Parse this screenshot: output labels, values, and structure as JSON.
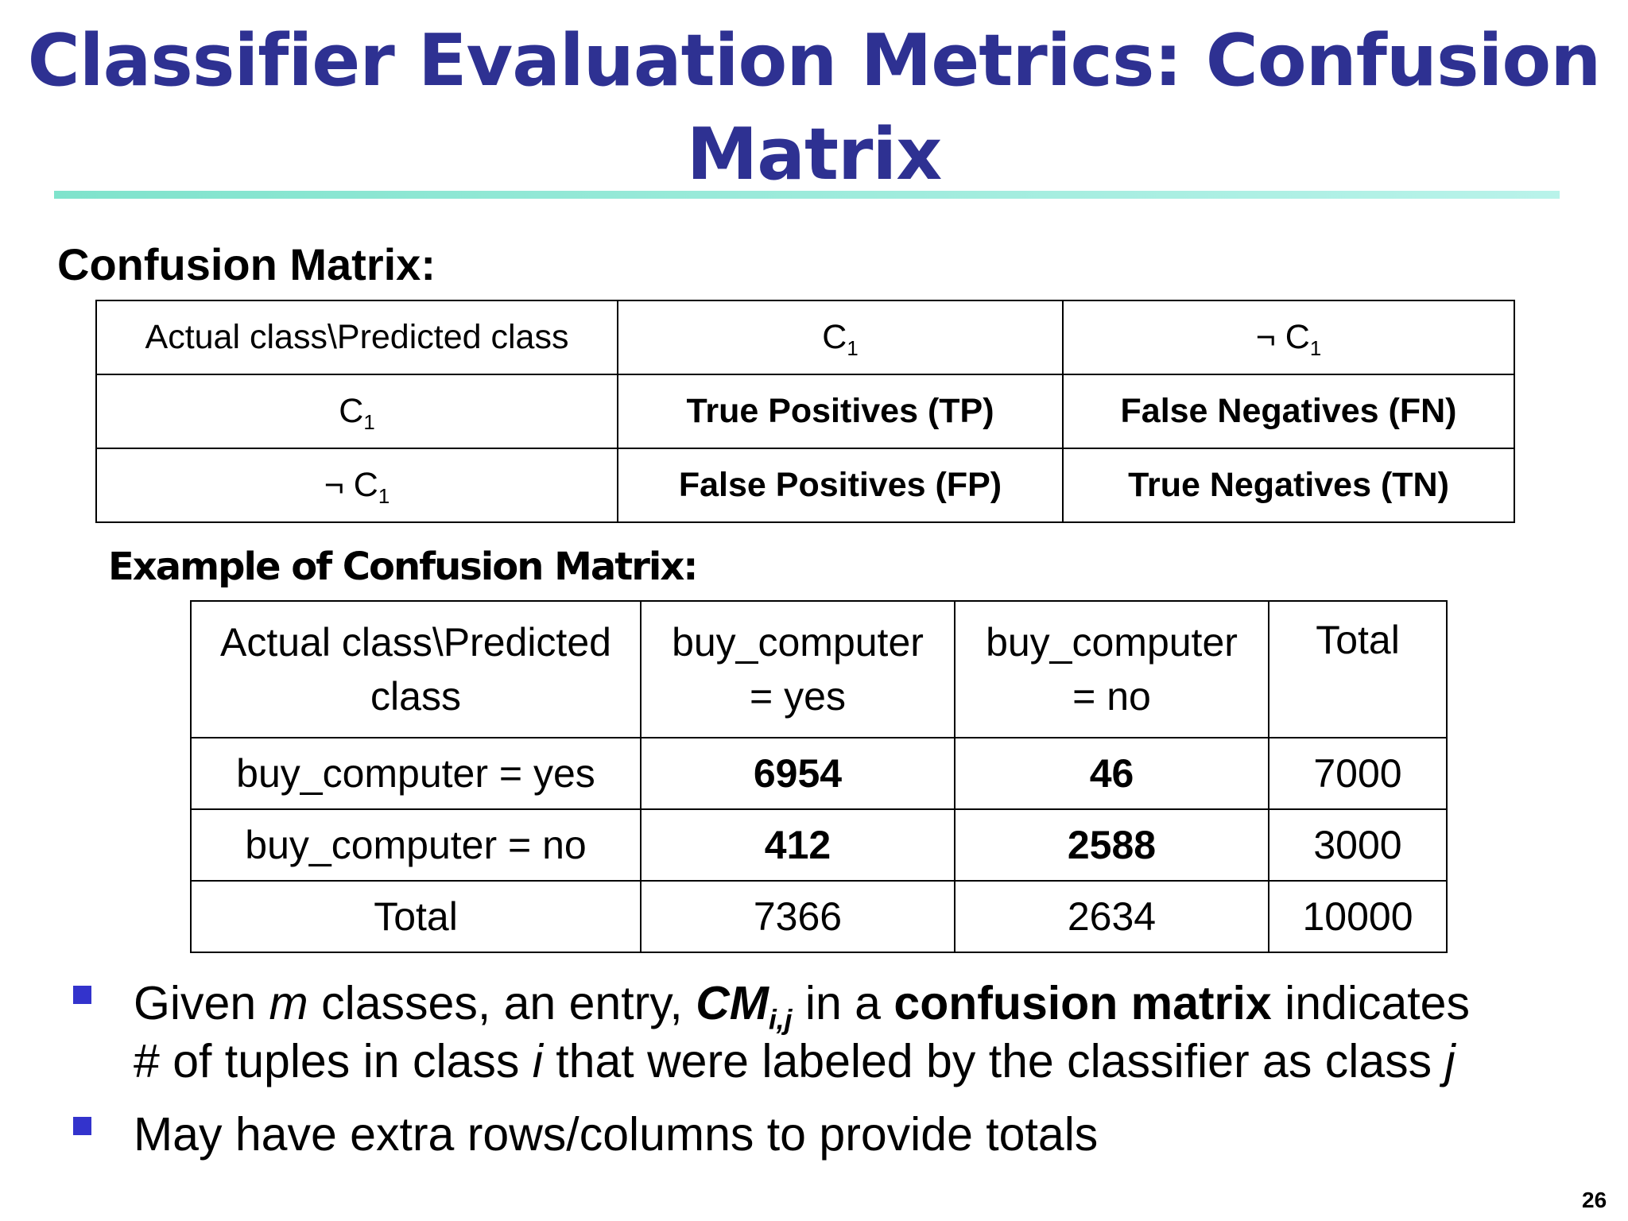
{
  "slide": {
    "title_line1": "Classifier Evaluation Metrics: Confusion",
    "title_line2": "Matrix",
    "section_heading": "Confusion Matrix:",
    "example_heading": "Example of Confusion Matrix:",
    "page_number": "26"
  },
  "matrix": {
    "corner": "Actual class\\Predicted class",
    "col_c1_prefix": "C",
    "col_c1_sub": "1",
    "col_notc1_prefix": "¬ C",
    "col_notc1_sub": "1",
    "row1_prefix": "C",
    "row1_sub": "1",
    "row2_prefix": "¬ C",
    "row2_sub": "1",
    "tp": "True Positives (TP)",
    "fn": "False Negatives (FN)",
    "fp": "False Positives (FP)",
    "tn": "True Negatives (TN)"
  },
  "example": {
    "corner_line1": "Actual class\\Predicted",
    "corner_line2": "class",
    "col_yes_line1": "buy_computer",
    "col_yes_line2": "=  yes",
    "col_no_line1": "buy_computer",
    "col_no_line2": "= no",
    "col_total": "Total",
    "rows": [
      {
        "label": "buy_computer = yes",
        "yes": "6954",
        "no": "46",
        "total": "7000"
      },
      {
        "label": "buy_computer = no",
        "yes": "412",
        "no": "2588",
        "total": "3000"
      },
      {
        "label": "Total",
        "yes": "7366",
        "no": "2634",
        "total": "10000"
      }
    ]
  },
  "bullets": {
    "b1_given": "Given ",
    "b1_m": "m",
    "b1_classes": " classes, an entry, ",
    "b1_cm": "CM",
    "b1_cm_sub": "i,j",
    "b1_in_a": " in a ",
    "b1_bold": "confusion matrix",
    "b1_indicates": " indicates",
    "b1_line2_a": "# of tuples in class ",
    "b1_i": "i",
    "b1_line2_b": "  that were labeled by the classifier as class ",
    "b1_j": "j",
    "b2": "May have extra rows/columns to provide totals"
  }
}
